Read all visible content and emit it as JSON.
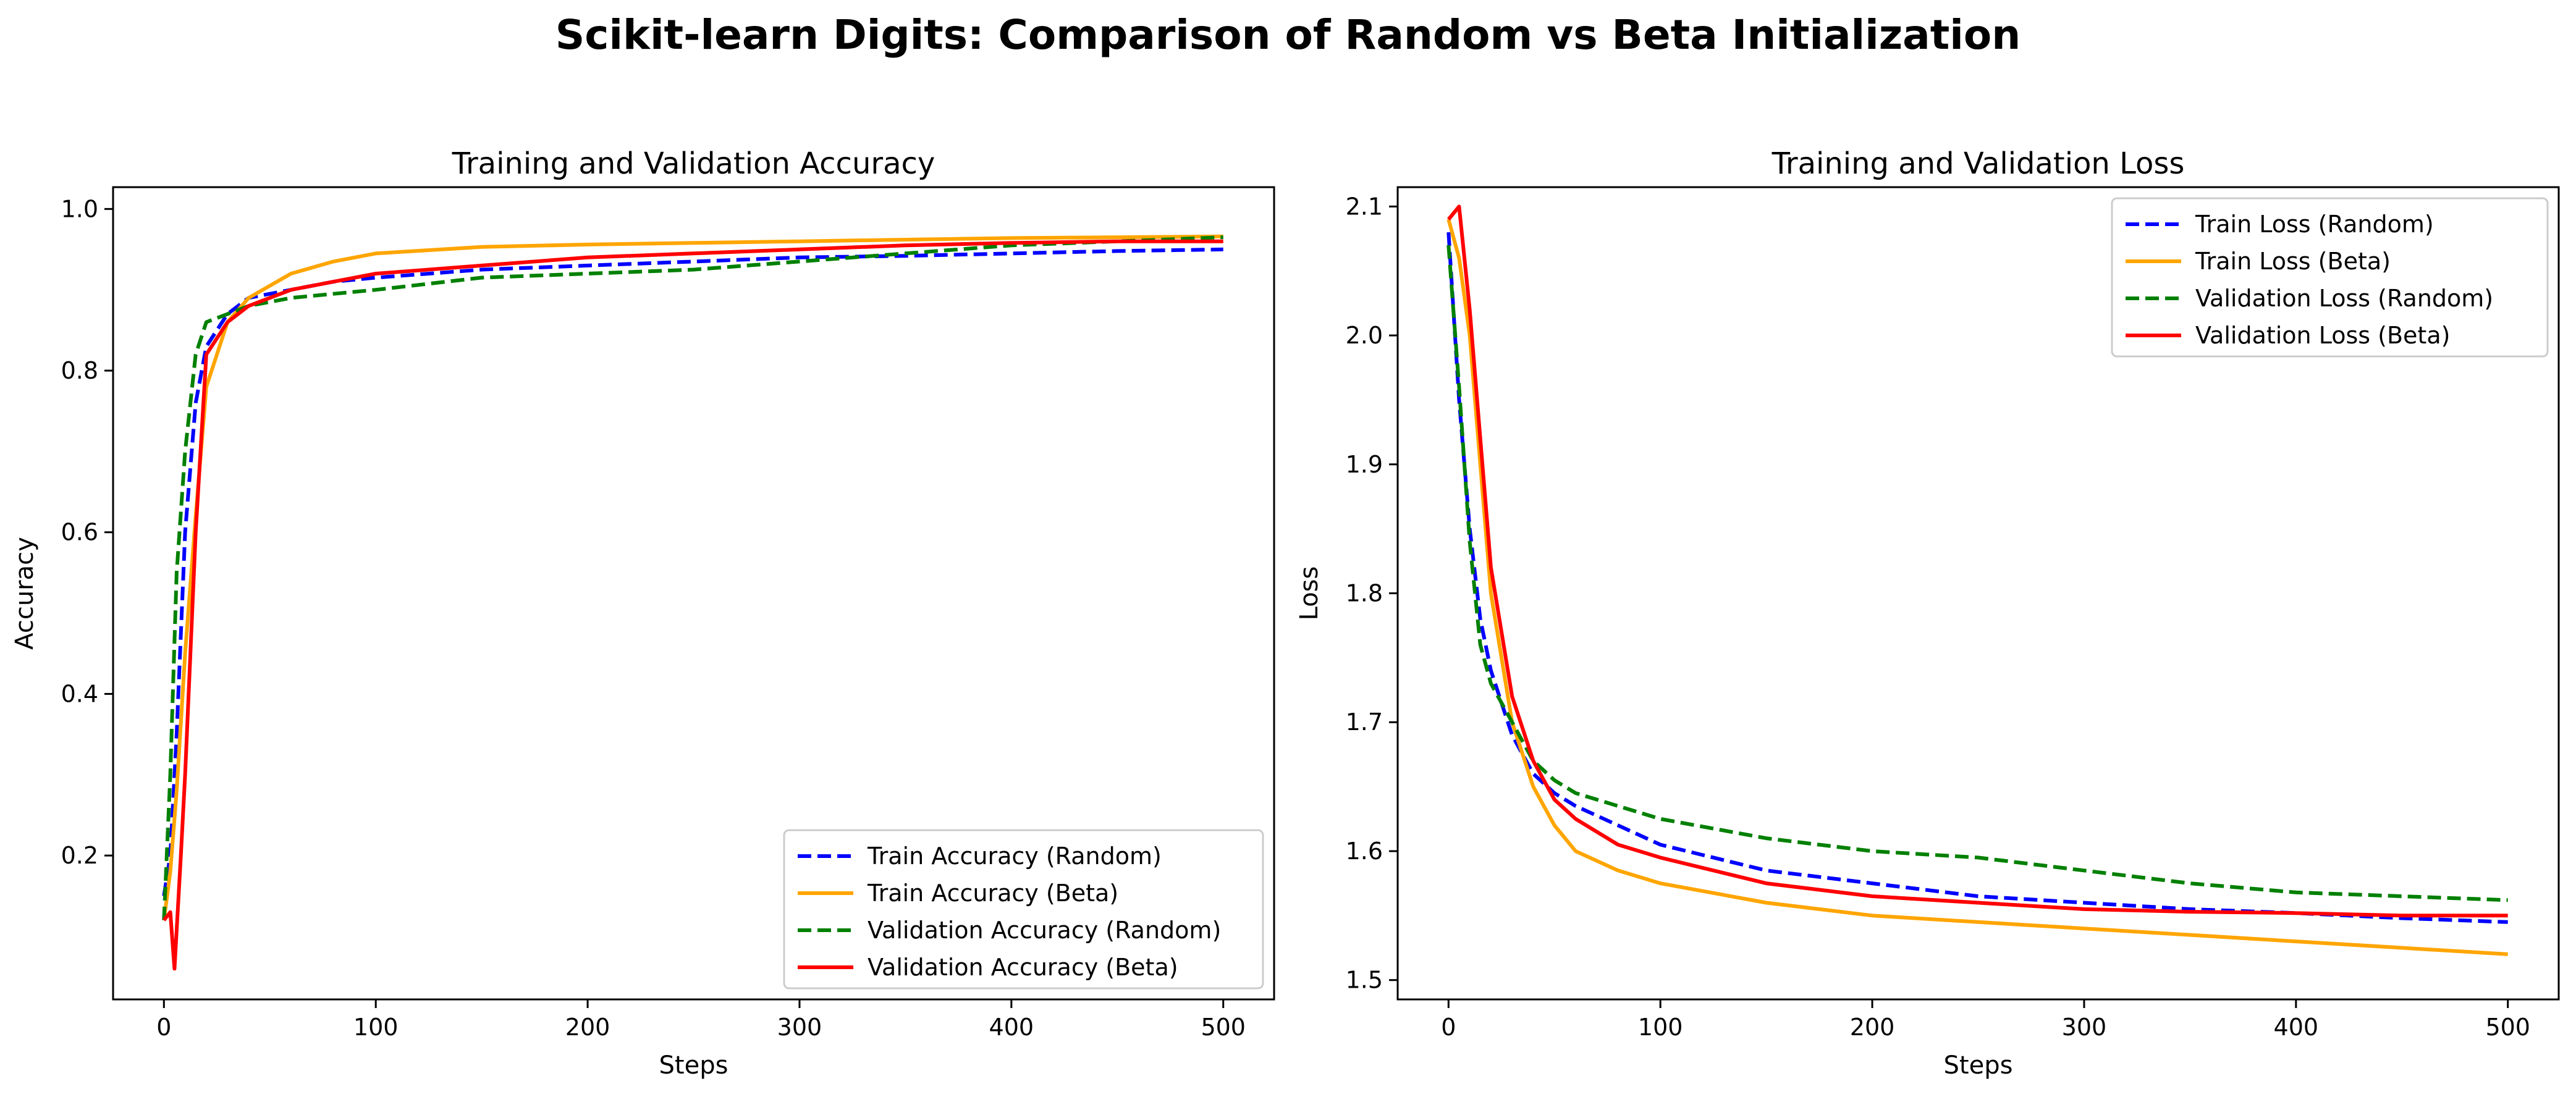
{
  "figure": {
    "title": "Scikit-learn Digits: Comparison of Random vs Beta Initialization"
  },
  "colors": {
    "blue": "#0000ff",
    "orange": "#ffa500",
    "green": "#008000",
    "red": "#ff0000"
  },
  "chart_data": [
    {
      "type": "line",
      "title": "Training and Validation Accuracy",
      "xlabel": "Steps",
      "ylabel": "Accuracy",
      "xlim": [
        -24,
        524
      ],
      "ylim": [
        0.022,
        1.027
      ],
      "xticks": [
        0,
        100,
        200,
        300,
        400,
        500
      ],
      "yticks": [
        0.2,
        0.4,
        0.6,
        0.8,
        1.0
      ],
      "ytick_labels": [
        "0.2",
        "0.4",
        "0.6",
        "0.8",
        "1.0"
      ],
      "legend_position": "lower-right",
      "series": [
        {
          "name": "Train Accuracy (Random)",
          "color": "#0000ff",
          "dash": "dashed",
          "x": [
            0,
            3,
            6,
            10,
            15,
            20,
            30,
            40,
            60,
            80,
            100,
            150,
            200,
            250,
            300,
            350,
            400,
            450,
            500
          ],
          "y": [
            0.15,
            0.2,
            0.35,
            0.6,
            0.76,
            0.83,
            0.87,
            0.89,
            0.9,
            0.91,
            0.915,
            0.925,
            0.93,
            0.935,
            0.94,
            0.942,
            0.945,
            0.948,
            0.95
          ]
        },
        {
          "name": "Train Accuracy (Beta)",
          "color": "#ffa500",
          "dash": "solid",
          "x": [
            0,
            3,
            6,
            10,
            15,
            20,
            30,
            40,
            60,
            80,
            100,
            150,
            200,
            250,
            300,
            350,
            400,
            450,
            500
          ],
          "y": [
            0.12,
            0.18,
            0.28,
            0.45,
            0.62,
            0.78,
            0.86,
            0.89,
            0.92,
            0.935,
            0.945,
            0.953,
            0.956,
            0.958,
            0.96,
            0.962,
            0.964,
            0.965,
            0.966
          ]
        },
        {
          "name": "Validation Accuracy (Random)",
          "color": "#008000",
          "dash": "dashed",
          "x": [
            0,
            3,
            6,
            10,
            15,
            20,
            30,
            40,
            60,
            80,
            100,
            150,
            200,
            250,
            300,
            350,
            400,
            450,
            500
          ],
          "y": [
            0.12,
            0.3,
            0.55,
            0.7,
            0.82,
            0.86,
            0.87,
            0.88,
            0.89,
            0.895,
            0.9,
            0.915,
            0.92,
            0.925,
            0.935,
            0.945,
            0.955,
            0.96,
            0.965
          ]
        },
        {
          "name": "Validation Accuracy (Beta)",
          "color": "#ff0000",
          "dash": "solid",
          "x": [
            0,
            3,
            5,
            8,
            10,
            15,
            20,
            30,
            40,
            60,
            80,
            100,
            150,
            200,
            250,
            300,
            350,
            400,
            450,
            500
          ],
          "y": [
            0.12,
            0.13,
            0.06,
            0.2,
            0.3,
            0.6,
            0.82,
            0.86,
            0.88,
            0.9,
            0.91,
            0.92,
            0.93,
            0.94,
            0.945,
            0.95,
            0.955,
            0.958,
            0.96,
            0.96
          ]
        }
      ]
    },
    {
      "type": "line",
      "title": "Training and Validation Loss",
      "xlabel": "Steps",
      "ylabel": "Loss",
      "xlim": [
        -24,
        524
      ],
      "ylim": [
        1.485,
        2.115
      ],
      "xticks": [
        0,
        100,
        200,
        300,
        400,
        500
      ],
      "yticks": [
        1.5,
        1.6,
        1.7,
        1.8,
        1.9,
        2.0,
        2.1
      ],
      "ytick_labels": [
        "1.5",
        "1.6",
        "1.7",
        "1.8",
        "1.9",
        "2.0",
        "2.1"
      ],
      "legend_position": "upper-right",
      "series": [
        {
          "name": "Train Loss (Random)",
          "color": "#0000ff",
          "dash": "dashed",
          "x": [
            0,
            5,
            10,
            15,
            20,
            30,
            40,
            50,
            60,
            80,
            100,
            150,
            200,
            250,
            300,
            350,
            400,
            450,
            500
          ],
          "y": [
            2.08,
            1.95,
            1.85,
            1.78,
            1.74,
            1.69,
            1.66,
            1.645,
            1.635,
            1.62,
            1.605,
            1.585,
            1.575,
            1.565,
            1.56,
            1.555,
            1.552,
            1.548,
            1.545
          ]
        },
        {
          "name": "Train Loss (Beta)",
          "color": "#ffa500",
          "dash": "solid",
          "x": [
            0,
            5,
            10,
            15,
            20,
            30,
            40,
            50,
            60,
            80,
            100,
            150,
            200,
            250,
            300,
            350,
            400,
            450,
            500
          ],
          "y": [
            2.09,
            2.06,
            2.0,
            1.9,
            1.8,
            1.7,
            1.65,
            1.62,
            1.6,
            1.585,
            1.575,
            1.56,
            1.55,
            1.545,
            1.54,
            1.535,
            1.53,
            1.525,
            1.52
          ]
        },
        {
          "name": "Validation Loss (Random)",
          "color": "#008000",
          "dash": "dashed",
          "x": [
            0,
            5,
            10,
            15,
            20,
            30,
            40,
            50,
            60,
            80,
            100,
            150,
            200,
            250,
            300,
            350,
            400,
            450,
            500
          ],
          "y": [
            2.07,
            1.96,
            1.84,
            1.76,
            1.73,
            1.7,
            1.67,
            1.655,
            1.645,
            1.635,
            1.625,
            1.61,
            1.6,
            1.595,
            1.585,
            1.575,
            1.568,
            1.565,
            1.562
          ]
        },
        {
          "name": "Validation Loss (Beta)",
          "color": "#ff0000",
          "dash": "solid",
          "x": [
            0,
            5,
            10,
            15,
            20,
            30,
            40,
            50,
            60,
            80,
            100,
            150,
            200,
            250,
            300,
            350,
            400,
            450,
            500
          ],
          "y": [
            2.09,
            2.1,
            2.02,
            1.92,
            1.82,
            1.72,
            1.67,
            1.64,
            1.625,
            1.605,
            1.595,
            1.575,
            1.565,
            1.56,
            1.555,
            1.553,
            1.552,
            1.55,
            1.55
          ]
        }
      ]
    }
  ]
}
